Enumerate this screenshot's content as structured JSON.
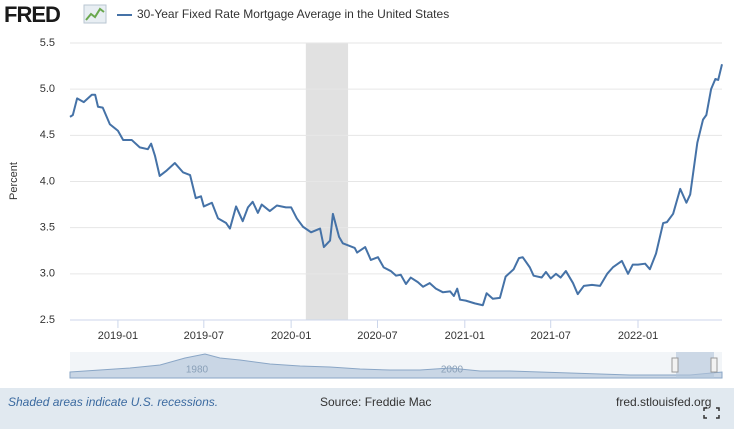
{
  "header": {
    "logo": "FRED"
  },
  "chart_data": {
    "type": "line",
    "series": [
      {
        "name": "30-Year Fixed Rate Mortgage Average in the United States",
        "color": "#4572a7",
        "values": [
          4.7,
          4.72,
          4.9,
          4.86,
          4.94,
          4.94,
          4.81,
          4.8,
          4.62,
          4.55,
          4.45,
          4.45,
          4.37,
          4.35,
          4.41,
          4.28,
          4.06,
          4.12,
          4.2,
          4.1,
          4.07,
          3.82,
          3.84,
          3.73,
          3.77,
          3.6,
          3.55,
          3.49,
          3.73,
          3.57,
          3.72,
          3.78,
          3.66,
          3.75,
          3.68,
          3.74,
          3.72,
          3.72,
          3.6,
          3.51,
          3.45,
          3.49,
          3.29,
          3.36,
          3.65,
          3.4,
          3.33,
          3.28,
          3.23,
          3.29,
          3.15,
          3.18,
          3.07,
          3.03,
          2.98,
          2.99,
          2.89,
          2.96,
          2.91,
          2.86,
          2.9,
          2.84,
          2.8,
          2.81,
          2.76,
          2.84,
          2.72,
          2.71,
          2.68,
          2.66,
          2.79,
          2.73,
          2.74,
          2.97,
          3.05,
          3.17,
          3.18,
          3.07,
          2.98,
          2.96,
          3.02,
          2.95,
          3.0,
          2.96,
          3.03,
          2.9,
          2.78,
          2.87,
          2.88,
          2.87,
          3.0,
          3.07,
          3.14,
          3.0,
          3.1,
          3.1,
          3.11,
          3.05,
          3.22,
          3.55,
          3.56,
          3.65,
          3.92,
          3.77,
          3.86,
          4.42,
          4.67,
          4.72,
          5.0,
          5.11,
          5.1,
          5.27
        ]
      }
    ],
    "x": [
      "2018-09-22",
      "2018-09-28",
      "2018-10-07",
      "2018-10-21",
      "2018-11-07",
      "2018-11-14",
      "2018-11-20",
      "2018-11-30",
      "2018-12-15",
      "2019-01-01",
      "2019-01-12",
      "2019-01-30",
      "2019-02-16",
      "2019-03-05",
      "2019-03-12",
      "2019-03-20",
      "2019-03-30",
      "2019-04-14",
      "2019-05-01",
      "2019-05-18",
      "2019-06-02",
      "2019-06-14",
      "2019-06-25",
      "2019-07-01",
      "2019-07-18",
      "2019-07-31",
      "2019-08-17",
      "2019-08-25",
      "2019-09-07",
      "2019-09-21",
      "2019-10-02",
      "2019-10-12",
      "2019-10-23",
      "2019-10-31",
      "2019-11-17",
      "2019-12-02",
      "2019-12-21",
      "2020-01-01",
      "2020-01-13",
      "2020-01-26",
      "2020-02-12",
      "2020-03-02",
      "2020-03-10",
      "2020-03-23",
      "2020-03-29",
      "2020-04-11",
      "2020-04-19",
      "2020-05-14",
      "2020-05-19",
      "2020-06-05",
      "2020-06-17",
      "2020-07-02",
      "2020-07-14",
      "2020-07-29",
      "2020-08-09",
      "2020-08-19",
      "2020-08-30",
      "2020-09-09",
      "2020-09-24",
      "2020-10-05",
      "2020-10-19",
      "2020-11-01",
      "2020-11-16",
      "2020-12-01",
      "2020-12-09",
      "2020-12-16",
      "2020-12-22",
      "2021-01-03",
      "2021-01-22",
      "2021-02-08",
      "2021-02-16",
      "2021-03-01",
      "2021-03-16",
      "2021-03-28",
      "2021-04-14",
      "2021-04-25",
      "2021-05-03",
      "2021-05-18",
      "2021-05-26",
      "2021-06-12",
      "2021-06-21",
      "2021-07-01",
      "2021-07-12",
      "2021-07-22",
      "2021-08-02",
      "2021-08-17",
      "2021-08-27",
      "2021-09-09",
      "2021-09-26",
      "2021-10-13",
      "2021-10-28",
      "2021-11-09",
      "2021-11-28",
      "2021-12-11",
      "2021-12-21",
      "2022-01-01",
      "2022-01-16",
      "2022-01-26",
      "2022-02-08",
      "2022-02-23",
      "2022-03-03",
      "2022-03-16",
      "2022-03-31",
      "2022-04-13",
      "2022-04-21",
      "2022-05-06",
      "2022-05-18",
      "2022-05-25",
      "2022-06-04",
      "2022-06-13",
      "2022-06-19",
      "2022-06-27"
    ],
    "xlim": [
      "2018-09-22",
      "2022-06-27"
    ],
    "xticks": [
      "2019-01",
      "2019-07",
      "2020-01",
      "2020-07",
      "2021-01",
      "2021-07",
      "2022-01"
    ],
    "ylim": [
      2.5,
      5.5
    ],
    "yticks": [
      2.5,
      {
        "value": 3,
        "label": "3.0"
      },
      3.5,
      {
        "value": 4,
        "label": "4.0"
      },
      4.5,
      {
        "value": 5,
        "label": "5.0"
      },
      5.5
    ],
    "ylabel": "Percent",
    "grid": true,
    "recessions": [
      [
        "2020-02-01",
        "2020-04-30"
      ]
    ],
    "recession_color": "#e1e1e1",
    "navigator_labels": [
      "1980",
      "2000"
    ]
  },
  "footer": {
    "note": "Shaded areas indicate U.S. recessions.",
    "source": "Source: Freddie Mac",
    "site": "fred.stlouisfed.org"
  }
}
